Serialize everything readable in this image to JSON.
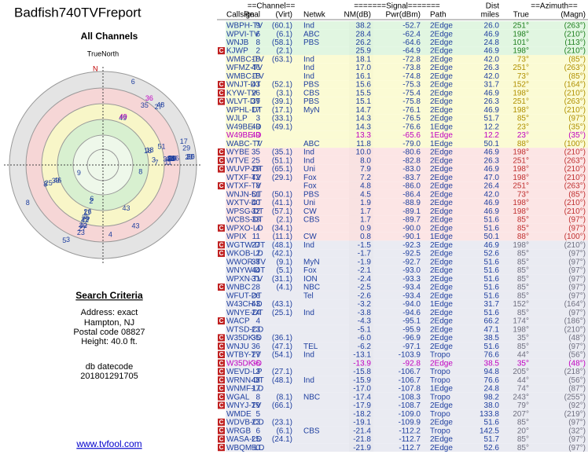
{
  "header": {
    "title": "Badfish740TVFreport"
  },
  "radar": {
    "title": "All Channels",
    "north_label": "TrueNorth",
    "north_letter": "N"
  },
  "criteria": {
    "title": "Search Criteria",
    "lines": [
      "Address: exact",
      "Hampton, NJ",
      "Postal code 08827",
      "Height: 40.0 ft."
    ],
    "db_label": "db datecode",
    "db_code": "201801291705"
  },
  "footer": {
    "link": "www.tvfool.com"
  },
  "table": {
    "group_headers": {
      "channel": "==Channel==",
      "signal": "=======Signal=======",
      "dist": "Dist",
      "azimuth": "==Azimuth=="
    },
    "headers": {
      "callsign": "Callsign",
      "real": "Real",
      "virt": "(Virt)",
      "netwk": "Netwk",
      "nm": "NM(dB)",
      "pwr": "Pwr(dBm)",
      "path": "Path",
      "dist": "miles",
      "true": "True",
      "magn": "(Magn)"
    },
    "rows": [
      {
        "callsign": "WBPH-TV",
        "real": "9",
        "virt": "(60.1)",
        "netwk": "Ind",
        "nm": "38.2",
        "pwr": "-52.7",
        "path": "2Edge",
        "dist": "26.0",
        "true": "251°",
        "magn": "(263°)"
      },
      {
        "callsign": "WPVI-TV",
        "real": "6",
        "virt": "(6.1)",
        "netwk": "ABC",
        "nm": "28.4",
        "pwr": "-62.4",
        "path": "2Edge",
        "dist": "46.9",
        "true": "198°",
        "magn": "(210°)"
      },
      {
        "callsign": "WNJB",
        "real": "8",
        "virt": "(58.1)",
        "netwk": "PBS",
        "nm": "26.2",
        "pwr": "-64.6",
        "path": "2Edge",
        "dist": "24.8",
        "true": "101°",
        "magn": "(113°)"
      },
      {
        "flag": "C",
        "callsign": "KJWP",
        "real": "2",
        "virt": "(2.1)",
        "nm": "25.9",
        "pwr": "-64.9",
        "path": "2Edge",
        "dist": "46.9",
        "true": "198°",
        "magn": "(210°)"
      },
      {
        "callsign": "WMBC-TV",
        "real": "18",
        "virt": "(63.1)",
        "netwk": "Ind",
        "nm": "18.1",
        "pwr": "-72.8",
        "path": "2Edge",
        "dist": "42.0",
        "true": "73°",
        "magn": "(85°)"
      },
      {
        "callsign": "WFMZ-TV",
        "real": "46",
        "netwk": "Ind",
        "nm": "17.0",
        "pwr": "-73.8",
        "path": "2Edge",
        "dist": "26.3",
        "true": "251°",
        "magn": "(263°)"
      },
      {
        "callsign": "WMBC-TV",
        "real": "18",
        "netwk": "Ind",
        "nm": "16.1",
        "pwr": "-74.8",
        "path": "2Edge",
        "dist": "42.0",
        "true": "73°",
        "magn": "(85°)"
      },
      {
        "flag": "C",
        "callsign": "WNJT-DT",
        "real": "43",
        "virt": "(52.1)",
        "netwk": "PBS",
        "nm": "15.6",
        "pwr": "-75.3",
        "path": "2Edge",
        "dist": "31.7",
        "true": "152°",
        "magn": "(164°)"
      },
      {
        "flag": "C",
        "callsign": "KYW-TV",
        "real": "26",
        "virt": "(3.1)",
        "netwk": "CBS",
        "nm": "15.5",
        "pwr": "-75.4",
        "path": "2Edge",
        "dist": "46.9",
        "true": "198°",
        "magn": "(210°)"
      },
      {
        "flag": "C",
        "callsign": "WLVT-DT",
        "real": "39",
        "virt": "(39.1)",
        "netwk": "PBS",
        "nm": "15.1",
        "pwr": "-75.8",
        "path": "2Edge",
        "dist": "26.3",
        "true": "251°",
        "magn": "(263°)"
      },
      {
        "callsign": "WPHL-DT",
        "real": "17",
        "virt": "(17.1)",
        "netwk": "MyN",
        "nm": "14.7",
        "pwr": "-76.1",
        "path": "2Edge",
        "dist": "46.9",
        "true": "198°",
        "magn": "(210°)"
      },
      {
        "callsign": "WJLP",
        "real": "3",
        "virt": "(33.1)",
        "nm": "14.3",
        "pwr": "-76.5",
        "path": "2Edge",
        "dist": "51.7",
        "true": "85°",
        "magn": "(97°)"
      },
      {
        "callsign": "W49BE-D",
        "real": "49",
        "virt": "(49.1)",
        "nm": "14.3",
        "pwr": "-76.6",
        "path": "1Edge",
        "dist": "12.2",
        "true": "23°",
        "magn": "(35°)"
      },
      {
        "callsign": "W49BE-D",
        "real": "49",
        "nm": "13.3",
        "pwr": "-65.6",
        "path": "1Edge",
        "dist": "12.2",
        "true": "23°",
        "magn": "(35°)",
        "color": "#c000c0"
      },
      {
        "callsign": "WABC-TV",
        "real": "7",
        "netwk": "ABC",
        "nm": "11.8",
        "pwr": "-79.0",
        "path": "1Edge",
        "dist": "50.1",
        "true": "88°",
        "magn": "(100°)"
      },
      {
        "flag": "C",
        "callsign": "WYBE",
        "real": "35",
        "virt": "(35.1)",
        "netwk": "Ind",
        "nm": "10.0",
        "pwr": "-80.6",
        "path": "2Edge",
        "dist": "46.9",
        "true": "198°",
        "magn": "(210°)"
      },
      {
        "flag": "C",
        "callsign": "WTVE",
        "real": "25",
        "virt": "(51.1)",
        "netwk": "Ind",
        "nm": "8.0",
        "pwr": "-82.8",
        "path": "2Edge",
        "dist": "26.3",
        "true": "251°",
        "magn": "(263°)"
      },
      {
        "flag": "C",
        "callsign": "WUVP-DT",
        "real": "29",
        "virt": "(65.1)",
        "netwk": "Uni",
        "nm": "7.9",
        "pwr": "-83.0",
        "path": "2Edge",
        "dist": "46.9",
        "true": "198°",
        "magn": "(210°)"
      },
      {
        "callsign": "WTXF-TV",
        "real": "42",
        "virt": "(29.1)",
        "netwk": "Fox",
        "nm": "7.2",
        "pwr": "-83.7",
        "path": "2Edge",
        "dist": "47.0",
        "true": "198°",
        "magn": "(210°)"
      },
      {
        "flag": "C",
        "callsign": "WTXF-TV",
        "real": "8",
        "netwk": "Fox",
        "nm": "4.8",
        "pwr": "-86.0",
        "path": "2Edge",
        "dist": "26.4",
        "true": "251°",
        "magn": "(263°)"
      },
      {
        "callsign": "WNJN-DT",
        "real": "51",
        "virt": "(50.1)",
        "netwk": "PBS",
        "nm": "4.5",
        "pwr": "-86.4",
        "path": "2Edge",
        "dist": "42.0",
        "true": "73°",
        "magn": "(85°)"
      },
      {
        "callsign": "WXTV-DT",
        "real": "40",
        "virt": "(41.1)",
        "netwk": "Uni",
        "nm": "1.9",
        "pwr": "-88.9",
        "path": "2Edge",
        "dist": "46.9",
        "true": "198°",
        "magn": "(210°)"
      },
      {
        "callsign": "WPSG-DT",
        "real": "32",
        "virt": "(57.1)",
        "netwk": "CW",
        "nm": "1.7",
        "pwr": "-89.1",
        "path": "2Edge",
        "dist": "46.9",
        "true": "198°",
        "magn": "(210°)"
      },
      {
        "callsign": "WCBS-DT",
        "real": "33",
        "virt": "(2.1)",
        "netwk": "CBS",
        "nm": "1.7",
        "pwr": "-89.7",
        "path": "2Edge",
        "dist": "51.6",
        "true": "85°",
        "magn": "(97°)"
      },
      {
        "flag": "C",
        "callsign": "WPXO-LD",
        "real": "4",
        "virt": "(34.1)",
        "nm": "0.9",
        "pwr": "-90.0",
        "path": "2Edge",
        "dist": "51.6",
        "true": "85°",
        "magn": "(97°)"
      },
      {
        "callsign": "WPIX",
        "real": "11",
        "virt": "(11.1)",
        "netwk": "CW",
        "nm": "0.8",
        "pwr": "-90.1",
        "path": "1Edge",
        "dist": "50.1",
        "true": "88°",
        "magn": "(100°)"
      },
      {
        "flag": "C",
        "callsign": "WGTW-DT",
        "real": "27",
        "virt": "(48.1)",
        "netwk": "Ind",
        "nm": "-1.5",
        "pwr": "-92.3",
        "path": "2Edge",
        "dist": "46.9",
        "true": "198°",
        "magn": "(210°)"
      },
      {
        "flag": "C",
        "callsign": "WKOB-LD",
        "real": "2",
        "virt": "(42.1)",
        "nm": "-1.7",
        "pwr": "-92.5",
        "path": "2Edge",
        "dist": "52.6",
        "true": "85°",
        "magn": "(97°)"
      },
      {
        "callsign": "WWOR-TV",
        "real": "38",
        "virt": "(9.1)",
        "netwk": "MyN",
        "nm": "-1.9",
        "pwr": "-92.7",
        "path": "2Edge",
        "dist": "51.6",
        "true": "85°",
        "magn": "(97°)"
      },
      {
        "callsign": "WNYW-DT",
        "real": "44",
        "virt": "(5.1)",
        "netwk": "Fox",
        "nm": "-2.1",
        "pwr": "-93.0",
        "path": "2Edge",
        "dist": "51.6",
        "true": "85°",
        "magn": "(97°)"
      },
      {
        "callsign": "WPXN-TV",
        "real": "31",
        "virt": "(31.1)",
        "netwk": "ION",
        "nm": "-2.4",
        "pwr": "-93.3",
        "path": "2Edge",
        "dist": "51.6",
        "true": "85°",
        "magn": "(97°)"
      },
      {
        "flag": "C",
        "callsign": "WNBC",
        "real": "28",
        "virt": "(4.1)",
        "netwk": "NBC",
        "nm": "-2.5",
        "pwr": "-93.4",
        "path": "2Edge",
        "dist": "51.6",
        "true": "85°",
        "magn": "(97°)"
      },
      {
        "callsign": "WFUT-DT",
        "real": "26",
        "netwk": "Tel",
        "nm": "-2.6",
        "pwr": "-93.4",
        "path": "2Edge",
        "dist": "51.6",
        "true": "85°",
        "magn": "(97°)"
      },
      {
        "callsign": "W43CH-D",
        "real": "43",
        "virt": "(43.1)",
        "nm": "-3.2",
        "pwr": "-94.0",
        "path": "1Edge",
        "dist": "31.7",
        "true": "152°",
        "magn": "(164°)"
      },
      {
        "callsign": "WNYE-DT",
        "real": "24",
        "virt": "(25.1)",
        "netwk": "Ind",
        "nm": "-3.8",
        "pwr": "-94.6",
        "path": "2Edge",
        "dist": "51.6",
        "true": "85°",
        "magn": "(97°)"
      },
      {
        "flag": "C",
        "callsign": "WACP",
        "real": "4",
        "nm": "-4.3",
        "pwr": "-95.1",
        "path": "2Edge",
        "dist": "66.2",
        "true": "174°",
        "magn": "(186°)"
      },
      {
        "callsign": "WTSD-CD",
        "real": "23",
        "nm": "-5.1",
        "pwr": "-95.9",
        "path": "2Edge",
        "dist": "47.1",
        "true": "198°",
        "magn": "(210°)"
      },
      {
        "flag": "C",
        "callsign": "W35DK-D",
        "real": "35",
        "virt": "(36.1)",
        "nm": "-6.0",
        "pwr": "-96.9",
        "path": "2Edge",
        "dist": "38.5",
        "true": "35°",
        "magn": "(48°)"
      },
      {
        "flag": "C",
        "callsign": "WNJU",
        "real": "36",
        "virt": "(47.1)",
        "netwk": "TEL",
        "nm": "-6.2",
        "pwr": "-97.1",
        "path": "2Edge",
        "dist": "51.6",
        "true": "85°",
        "magn": "(97°)"
      },
      {
        "flag": "C",
        "callsign": "WTBY-TV",
        "real": "27",
        "virt": "(54.1)",
        "netwk": "Ind",
        "nm": "-13.1",
        "pwr": "-103.9",
        "path": "Tropo",
        "dist": "76.6",
        "true": "44°",
        "magn": "(56°)"
      },
      {
        "flag": "C",
        "callsign": "W35DK-D",
        "real": "36",
        "nm": "-13.9",
        "pwr": "-92.8",
        "path": "2Edge",
        "dist": "38.5",
        "true": "35°",
        "magn": "(48°)",
        "color": "#c000c0"
      },
      {
        "flag": "C",
        "callsign": "WEVD-LP",
        "real": "3",
        "virt": "(27.1)",
        "nm": "-15.8",
        "pwr": "-106.7",
        "path": "Tropo",
        "dist": "94.8",
        "true": "205°",
        "magn": "(218°)"
      },
      {
        "flag": "C",
        "callsign": "WRNN-DT",
        "real": "48",
        "virt": "(48.1)",
        "netwk": "Ind",
        "nm": "-15.9",
        "pwr": "-106.7",
        "path": "Tropo",
        "dist": "76.6",
        "true": "44°",
        "magn": "(56°)"
      },
      {
        "flag": "C",
        "callsign": "WNMF-LD",
        "real": "17",
        "nm": "-17.0",
        "pwr": "-107.8",
        "path": "1Edge",
        "dist": "24.8",
        "true": "74°",
        "magn": "(87°)"
      },
      {
        "flag": "C",
        "callsign": "WGAL",
        "real": "8",
        "virt": "(8.1)",
        "netwk": "NBC",
        "nm": "-17.4",
        "pwr": "-108.3",
        "path": "Tropo",
        "dist": "98.2",
        "true": "243°",
        "magn": "(255°)"
      },
      {
        "flag": "C",
        "callsign": "WNYJ-TV",
        "real": "29",
        "virt": "(66.1)",
        "nm": "-17.9",
        "pwr": "-108.7",
        "path": "2Edge",
        "dist": "38.0",
        "true": "79°",
        "magn": "(92°)"
      },
      {
        "callsign": "WMDE",
        "real": "5",
        "nm": "-18.2",
        "pwr": "-109.0",
        "path": "Tropo",
        "dist": "133.8",
        "true": "207°",
        "magn": "(219°)"
      },
      {
        "flag": "C",
        "callsign": "WDVB-CD",
        "real": "23",
        "virt": "(23.1)",
        "nm": "-19.1",
        "pwr": "-109.9",
        "path": "2Edge",
        "dist": "51.6",
        "true": "85°",
        "magn": "(97°)"
      },
      {
        "flag": "C",
        "callsign": "WRGB",
        "real": "6",
        "virt": "(6.1)",
        "netwk": "CBS",
        "nm": "-21.4",
        "pwr": "-112.2",
        "path": "Tropo",
        "dist": "142.5",
        "true": "20°",
        "magn": "(32°)"
      },
      {
        "flag": "C",
        "callsign": "WASA-LD",
        "real": "25",
        "virt": "(24.1)",
        "nm": "-21.8",
        "pwr": "-112.7",
        "path": "2Edge",
        "dist": "51.7",
        "true": "85°",
        "magn": "(97°)"
      },
      {
        "flag": "C",
        "callsign": "WBQM-LD",
        "real": "50",
        "nm": "-21.9",
        "pwr": "-112.7",
        "path": "2Edge",
        "dist": "52.6",
        "true": "85°",
        "magn": "(97°)"
      }
    ]
  }
}
